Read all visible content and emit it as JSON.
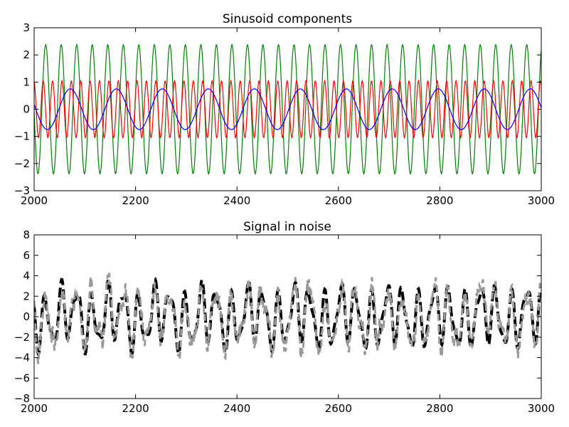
{
  "chart_data": [
    {
      "type": "line",
      "title": "Sinusoid components",
      "xlabel": "",
      "ylabel": "",
      "xlim": [
        2000,
        3000
      ],
      "ylim": [
        -3,
        3
      ],
      "grid": false,
      "x_ticks": [
        "2000",
        "2200",
        "2400",
        "2600",
        "2800",
        "3000"
      ],
      "y_ticks": [
        "3",
        "2",
        "1",
        "0",
        "−1",
        "−2",
        "−3"
      ],
      "series": [
        {
          "color": "#0000ff",
          "amplitude": 0.75,
          "period": 90.7,
          "phase": 1.34,
          "x": [
            2000,
            3000
          ],
          "sampling_step": 2
        },
        {
          "color": "#008000",
          "amplitude": 2.38,
          "period": 30.6,
          "phase": 1.6,
          "x": [
            2000,
            3000
          ],
          "sampling_step": 1
        },
        {
          "color": "#ff0000",
          "amplitude": 1.05,
          "period": 18.5,
          "phase": 0.2,
          "x": [
            2000,
            3000
          ],
          "sampling_step": 1
        }
      ]
    },
    {
      "type": "line",
      "title": "Signal in noise",
      "xlabel": "",
      "ylabel": "",
      "xlim": [
        2000,
        3000
      ],
      "ylim": [
        -8,
        8
      ],
      "grid": false,
      "x_ticks": [
        "2000",
        "2200",
        "2400",
        "2600",
        "2800",
        "3000"
      ],
      "y_ticks": [
        "8",
        "6",
        "4",
        "2",
        "0",
        "−2",
        "−4",
        "−6",
        "−8"
      ],
      "series": [
        {
          "color": "#000000",
          "style": "dashed",
          "kind": "sum of sinusoid components"
        },
        {
          "color": "#999999",
          "style": "dashed",
          "kind": "noisy signal"
        }
      ]
    }
  ]
}
